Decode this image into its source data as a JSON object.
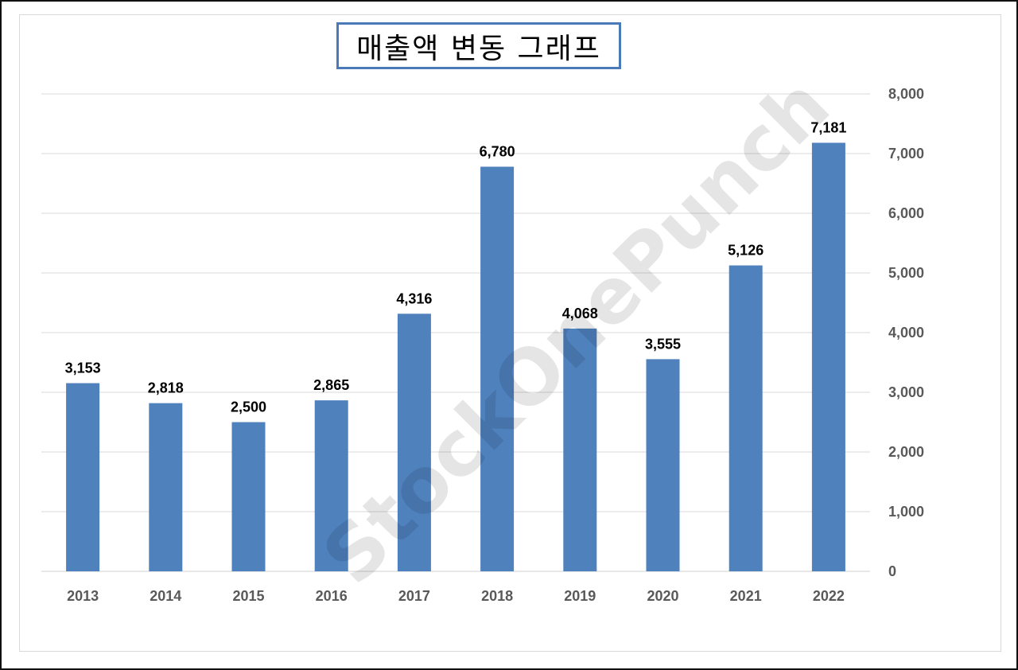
{
  "chart_data": {
    "type": "bar",
    "title": "매출액 변동 그래프",
    "categories": [
      "2013",
      "2014",
      "2015",
      "2016",
      "2017",
      "2018",
      "2019",
      "2020",
      "2021",
      "2022"
    ],
    "values": [
      3153,
      2818,
      2500,
      2865,
      4316,
      6780,
      4068,
      3555,
      5126,
      7181
    ],
    "value_labels": [
      "3,153",
      "2,818",
      "2,500",
      "2,865",
      "4,316",
      "6,780",
      "4,068",
      "3,555",
      "5,126",
      "7,181"
    ],
    "y_ticks": [
      0,
      1000,
      2000,
      3000,
      4000,
      5000,
      6000,
      7000,
      8000
    ],
    "y_tick_labels": [
      "0",
      "1,000",
      "2,000",
      "3,000",
      "4,000",
      "5,000",
      "6,000",
      "7,000",
      "8,000"
    ],
    "ylim": [
      0,
      8000
    ],
    "y_axis_position": "right",
    "grid": true,
    "legend": false,
    "bar_color": "#4f81bd",
    "watermark": "StockOnePunch"
  }
}
